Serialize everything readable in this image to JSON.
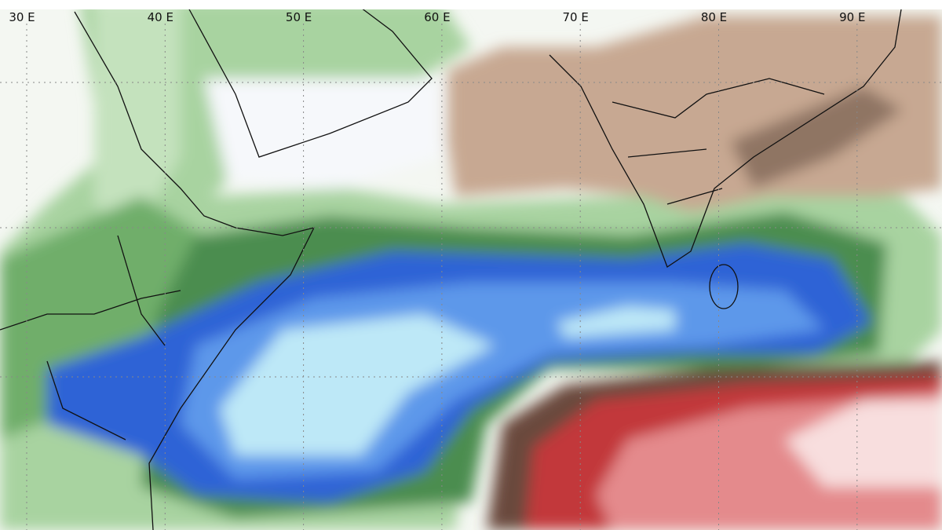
{
  "map": {
    "longitude_labels": [
      "30 E",
      "40 E",
      "50 E",
      "60 E",
      "70 E",
      "80 E",
      "90 E"
    ]
  }
}
